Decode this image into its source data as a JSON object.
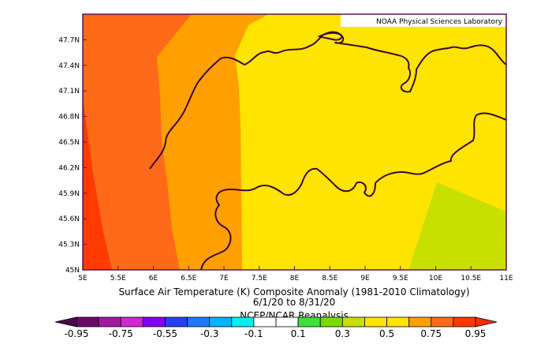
{
  "credit": "NOAA Physical Sciences Laboratory",
  "title": {
    "line1": "Surface Air Temperature (K) Composite Anomaly (1981-2010 Climatology)",
    "line2": "6/1/20  to 8/31/20",
    "line3": "NCEP/NCAR Reanalysis"
  },
  "map": {
    "lon_range": [
      5.0,
      11.0
    ],
    "lat_range": [
      45.0,
      48.0
    ],
    "x_ticks": [
      "5E",
      "5.5E",
      "6E",
      "6.5E",
      "7E",
      "7.5E",
      "8E",
      "8.5E",
      "9E",
      "9.5E",
      "10E",
      "10.5E",
      "11E"
    ],
    "y_ticks": [
      "45N",
      "45.3N",
      "45.6N",
      "45.9N",
      "46.2N",
      "46.5N",
      "46.8N",
      "47.1N",
      "47.4N",
      "47.7N"
    ],
    "frame_color": "#5a1450",
    "border_color": "#3a0a2e",
    "anomaly_regions": [
      {
        "color": "#ff6a18",
        "level": "0.75 to 0.95"
      },
      {
        "color": "#ffa000",
        "level": "0.5 to 0.75"
      },
      {
        "color": "#ffe400",
        "level": "0.3 to 0.5"
      },
      {
        "color": "#c8e000",
        "level": "0.1 to 0.3"
      },
      {
        "color": "#ff3a00",
        "level": "above 0.95"
      }
    ]
  },
  "colorbar": {
    "colors": [
      "#6a0a6a",
      "#a01aa0",
      "#d028d0",
      "#8000f0",
      "#2840f0",
      "#1e78ff",
      "#00b4ff",
      "#00f0f0",
      "#ffffff",
      "#ffffff",
      "#3ce23c",
      "#78dc00",
      "#c8e000",
      "#ffe400",
      "#ffe400",
      "#ffa000",
      "#ff6a18",
      "#ff3a00"
    ],
    "end_left_color": "#4a0a4a",
    "end_right_color": "#ff2a00",
    "labels": [
      "-0.95",
      "-0.75",
      "-0.55",
      "-0.3",
      "-0.1",
      "0.1",
      "0.3",
      "0.5",
      "0.75",
      "0.95"
    ]
  }
}
